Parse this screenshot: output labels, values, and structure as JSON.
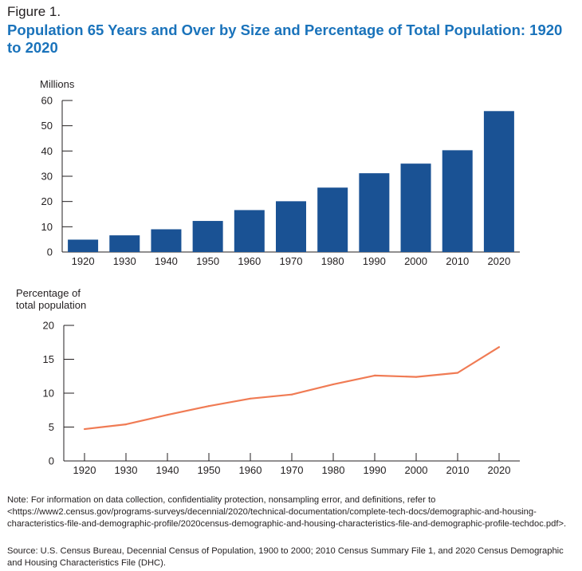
{
  "figure_label": "Figure 1.",
  "title": "Population 65 Years and Over by Size and Percentage of Total Population: 1920 to 2020",
  "colors": {
    "bar": "#1a5294",
    "line": "#f07b54",
    "title": "#1a73bb"
  },
  "chart_data": [
    {
      "type": "bar",
      "ylabel": "Millions",
      "categories": [
        "1920",
        "1930",
        "1940",
        "1950",
        "1960",
        "1970",
        "1980",
        "1990",
        "2000",
        "2010",
        "2020"
      ],
      "values": [
        4.9,
        6.6,
        9.0,
        12.3,
        16.6,
        20.1,
        25.5,
        31.2,
        35.0,
        40.3,
        55.8
      ],
      "yticks": [
        0,
        10,
        20,
        30,
        40,
        50,
        60
      ],
      "ylim": [
        0,
        60
      ]
    },
    {
      "type": "line",
      "ylabel_lines": [
        "Percentage of",
        "total population"
      ],
      "categories": [
        "1920",
        "1930",
        "1940",
        "1950",
        "1960",
        "1970",
        "1980",
        "1990",
        "2000",
        "2010",
        "2020"
      ],
      "values": [
        4.7,
        5.4,
        6.8,
        8.1,
        9.2,
        9.8,
        11.3,
        12.6,
        12.4,
        13.0,
        16.8
      ],
      "yticks": [
        0,
        5,
        10,
        15,
        20
      ],
      "ylim": [
        0,
        20
      ]
    }
  ],
  "note": "Note: For information on data collection, confidentiality protection, nonsampling error, and definitions, refer to <https://www2.census.gov/programs-surveys/decennial/2020/technical-documentation/complete-tech-docs/demographic-and-housing-characteristics-file-and-demographic-profile/2020census-demographic-and-housing-characteristics-file-and-demographic-profile-techdoc.pdf>.",
  "source": "Source: U.S. Census Bureau, Decennial Census of Population, 1900 to 2000; 2010 Census Summary File 1, and 2020 Census Demographic and Housing Characteristics File (DHC)."
}
